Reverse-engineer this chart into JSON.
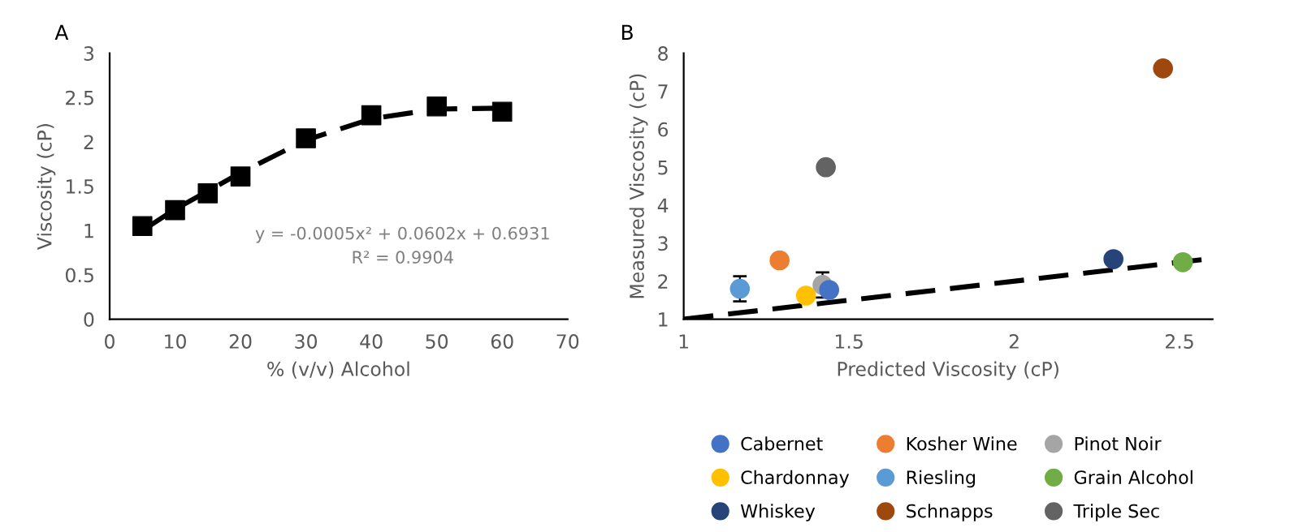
{
  "chart_data": [
    {
      "type": "scatter",
      "title": "A",
      "xlabel": "% (v/v) Alcohol",
      "ylabel": "Viscosity (cP)",
      "xlim": [
        0,
        70
      ],
      "xticks": [
        0,
        10,
        20,
        30,
        40,
        50,
        60,
        70
      ],
      "ylim": [
        0,
        3
      ],
      "yticks": [
        0,
        0.5,
        1,
        1.5,
        2,
        2.5,
        3
      ],
      "grid": false,
      "legend": false,
      "annotations": [
        "y = -0.0005x² + 0.0602x + 0.6931",
        "R² = 0.9904"
      ],
      "series": [
        {
          "type": "line",
          "color": "#000000",
          "line_style": "dashed",
          "marker": "none",
          "x": [
            5,
            10,
            20,
            30,
            40,
            50,
            60
          ],
          "values": [
            1.0,
            1.24,
            1.65,
            2.02,
            2.26,
            2.37,
            2.38
          ]
        },
        {
          "type": "scatter",
          "color": "#000000",
          "marker": "square",
          "x": [
            5,
            10,
            15,
            20,
            30,
            40,
            50,
            60
          ],
          "values": [
            1.05,
            1.23,
            1.42,
            1.61,
            2.04,
            2.3,
            2.4,
            2.34
          ]
        }
      ]
    },
    {
      "type": "scatter",
      "title": "B",
      "xlabel": "Predicted Viscosity (cP)",
      "ylabel": "Measured Viscosity (cP)",
      "xlim": [
        1,
        2.6
      ],
      "xticks": [
        1,
        1.5,
        2,
        2.5
      ],
      "ylim": [
        1,
        8
      ],
      "yticks": [
        1,
        2,
        3,
        4,
        5,
        6,
        7,
        8
      ],
      "grid": false,
      "legend": "bottom",
      "marker": "circle",
      "series": [
        {
          "type": "line",
          "color": "#000000",
          "line_style": "dashed",
          "marker": "none",
          "x": [
            1,
            2.6
          ],
          "values": [
            1,
            2.6
          ]
        },
        {
          "name": "Cabernet",
          "color": "#4472c4",
          "x": [
            1.44
          ],
          "values": [
            1.77
          ]
        },
        {
          "name": "Chardonnay",
          "color": "#ffc000",
          "x": [
            1.37
          ],
          "values": [
            1.62
          ]
        },
        {
          "name": "Whiskey",
          "color": "#264478",
          "x": [
            2.3
          ],
          "values": [
            2.58
          ]
        },
        {
          "name": "Kosher Wine",
          "color": "#ed7d31",
          "x": [
            1.29
          ],
          "values": [
            2.55
          ]
        },
        {
          "name": "Riesling",
          "color": "#5b9bd5",
          "x": [
            1.17
          ],
          "values": [
            1.8
          ],
          "errors": [
            0.33
          ]
        },
        {
          "name": "Schnapps",
          "color": "#9e480e",
          "x": [
            2.45
          ],
          "values": [
            7.6
          ]
        },
        {
          "name": "Pinot Noir",
          "color": "#a5a5a5",
          "x": [
            1.42
          ],
          "values": [
            1.9
          ],
          "errors": [
            0.33
          ]
        },
        {
          "name": "Grain Alcohol",
          "color": "#70ad47",
          "x": [
            2.51
          ],
          "values": [
            2.5
          ]
        },
        {
          "name": "Triple Sec",
          "color": "#636363",
          "x": [
            1.43
          ],
          "values": [
            5.0
          ]
        }
      ]
    }
  ]
}
